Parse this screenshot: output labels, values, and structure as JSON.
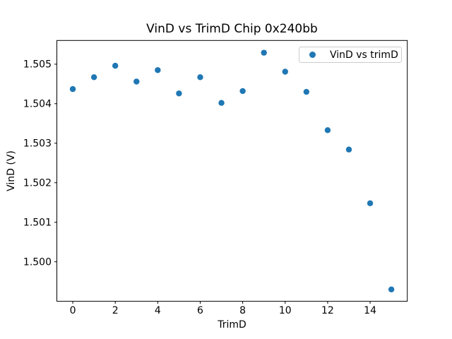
{
  "chart_data": {
    "type": "scatter",
    "title": "VinD vs TrimD Chip 0x240bb",
    "xlabel": "TrimD",
    "ylabel": "VinD (V)",
    "series": [
      {
        "name": "VinD vs trimD",
        "x": [
          0,
          1,
          2,
          3,
          4,
          5,
          6,
          7,
          8,
          9,
          10,
          11,
          12,
          13,
          14,
          15
        ],
        "y": [
          1.50437,
          1.50467,
          1.50496,
          1.50456,
          1.50485,
          1.50426,
          1.50467,
          1.50402,
          1.50432,
          1.50529,
          1.50481,
          1.5043,
          1.50333,
          1.50284,
          1.50148,
          1.4993
        ],
        "marker": "circle",
        "color": "#1f77b4"
      }
    ],
    "xlim": [
      -0.75,
      15.75
    ],
    "ylim": [
      1.499,
      1.5056
    ],
    "xticks": {
      "values": [
        0,
        2,
        4,
        6,
        8,
        10,
        12,
        14
      ],
      "labels": [
        "0",
        "2",
        "4",
        "6",
        "8",
        "10",
        "12",
        "14"
      ]
    },
    "yticks": {
      "values": [
        1.5,
        1.501,
        1.502,
        1.503,
        1.504,
        1.505
      ],
      "labels": [
        "1.500",
        "1.501",
        "1.502",
        "1.503",
        "1.504",
        "1.505"
      ]
    },
    "legend": {
      "position": "upper right",
      "entries": [
        "VinD vs trimD"
      ]
    },
    "grid": false,
    "colors": {
      "background": "#ffffff",
      "frame": "#000000",
      "text": "#000000",
      "legend_border": "#cccccc"
    }
  }
}
